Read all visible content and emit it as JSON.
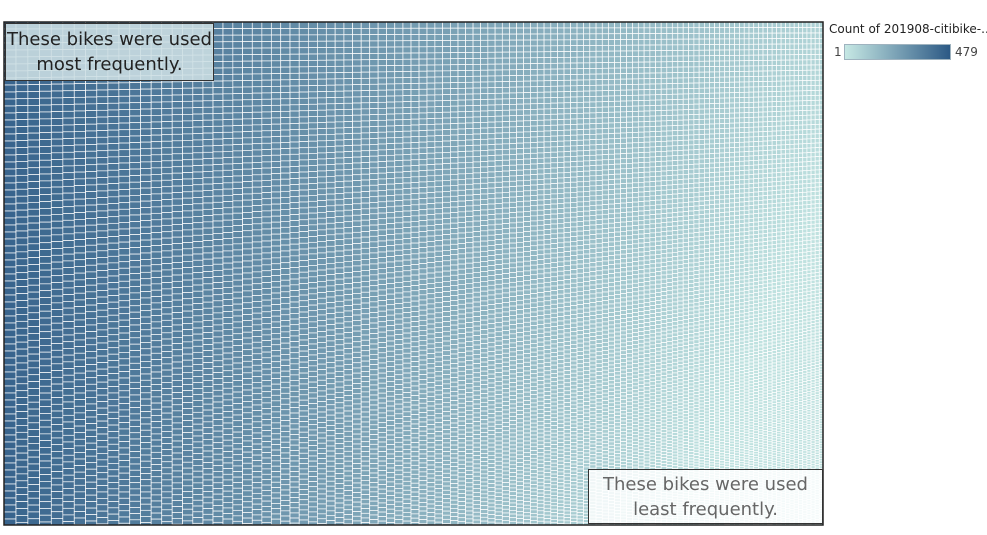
{
  "chart_data": {
    "type": "heatmap",
    "legend_title": "Count of 201908-citibike-..",
    "color_min_label": "1",
    "color_max_label": "479",
    "color_range": [
      1,
      479
    ],
    "colors": {
      "low": "#c6e8e4",
      "high": "#2c5985"
    },
    "legend_placement": "top-right",
    "annotations": [
      {
        "text": "These bikes were used most frequently.",
        "placement": "top-left"
      },
      {
        "text": "These bikes were used least frequently.",
        "placement": "bottom-right"
      }
    ]
  }
}
